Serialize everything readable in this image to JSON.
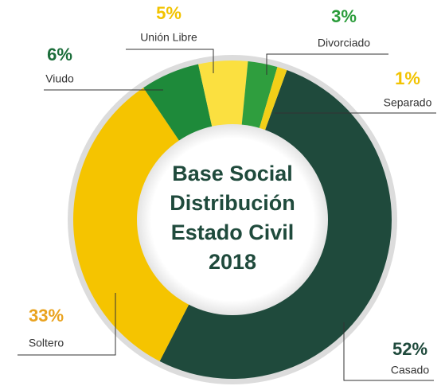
{
  "chart_data": {
    "type": "donut",
    "title": [
      "Base Social",
      "Distribución",
      "Estado Civil",
      "2018"
    ],
    "categories": [
      "Casado",
      "Soltero",
      "Viudo",
      "Unión Libre",
      "Divorciado",
      "Separado"
    ],
    "values": [
      52,
      33,
      6,
      5,
      3,
      1
    ],
    "value_labels": [
      "52%",
      "33%",
      "6%",
      "5%",
      "3%",
      "1%"
    ],
    "colors": [
      "#1f4a3c",
      "#f5c400",
      "#1e8a3a",
      "#fbe040",
      "#2f9e3e",
      "#f2cf18"
    ],
    "label_colors": [
      "#1f4a3c",
      "#e9a21e",
      "#1c6e3b",
      "#f2c300",
      "#2a9c3a",
      "#f2c300"
    ]
  }
}
